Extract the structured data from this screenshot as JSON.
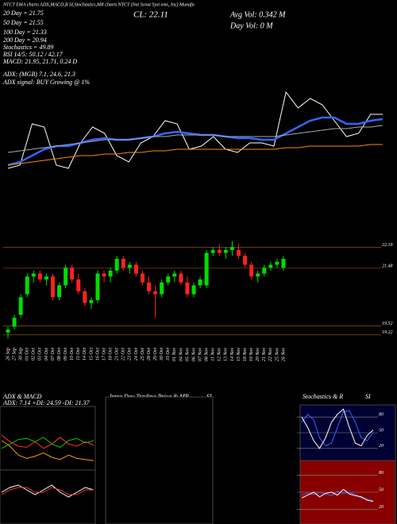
{
  "header": {
    "top_strip": "NTCT EMA charts ADX,MACD,B SI,Stochastics,MR charts NTCT (Net Scout Syst ems, Inc) Munafa",
    "ema20": "20 Day = 21.75",
    "ema50": "50 Day = 21.55",
    "ema100": "100 Day = 21.33",
    "ema200": "200 Day = 20.94",
    "stochastics": "Stochastics = 49.89",
    "rsi": "RSI 14/5: 50.12 / 42.17",
    "macd": "MACD: 21.95, 21.71, 0.24  D",
    "close": "CL: 22.11",
    "avg_vol": "Avg Vol: 0.342  M",
    "day_vol": "Day Vol: 0   M",
    "adx": "ADX:           (MGB) 7.1, 24.6, 21.3",
    "adx_signal": "ADX  signal:                     BUY Growing @ 1%"
  },
  "panels": {
    "adx_macd": "ADX  & MACD",
    "adx_values": "ADX: 7.14 +DI: 24.59 -DI: 21.37",
    "intraday": "Intra Day Trading Price  & MR",
    "intraday_si": "SI",
    "stoch": "Stochastics & R",
    "stoch_si": "SI"
  },
  "chart_data": [
    {
      "type": "line",
      "ylim": [
        19.5,
        23
      ],
      "series": [
        {
          "color": "#ffffff",
          "values": [
            20.2,
            20.3,
            21.6,
            21.5,
            20.3,
            20.2,
            21.0,
            21.5,
            21.3,
            20.6,
            20.4,
            21.0,
            21.2,
            21.7,
            21.6,
            20.8,
            20.9,
            21.2,
            20.8,
            20.7,
            21.0,
            21.0,
            20.9,
            22.6,
            22.1,
            22.4,
            22.2,
            21.7,
            21.2,
            21.3,
            21.9,
            21.9
          ]
        },
        {
          "color": "#3366ff",
          "values": [
            20.3,
            20.4,
            20.6,
            20.8,
            20.9,
            20.9,
            21.0,
            21.1,
            21.15,
            21.1,
            21.1,
            21.15,
            21.2,
            21.3,
            21.35,
            21.3,
            21.25,
            21.25,
            21.2,
            21.15,
            21.15,
            21.1,
            21.1,
            21.3,
            21.5,
            21.7,
            21.8,
            21.8,
            21.6,
            21.6,
            21.7,
            21.75
          ]
        },
        {
          "color": "#aaaaaa",
          "values": [
            20.7,
            20.75,
            20.8,
            20.85,
            20.9,
            20.95,
            21.0,
            21.05,
            21.1,
            21.1,
            21.1,
            21.15,
            21.2,
            21.2,
            21.25,
            21.25,
            21.25,
            21.25,
            21.2,
            21.2,
            21.2,
            21.2,
            21.2,
            21.25,
            21.3,
            21.35,
            21.4,
            21.45,
            21.45,
            21.5,
            21.5,
            21.55
          ]
        },
        {
          "color": "#ff8800",
          "values": [
            20.3,
            20.35,
            20.4,
            20.45,
            20.5,
            20.55,
            20.6,
            20.6,
            20.65,
            20.65,
            20.7,
            20.7,
            20.75,
            20.75,
            20.8,
            20.8,
            20.8,
            20.8,
            20.8,
            20.8,
            20.8,
            20.8,
            20.8,
            20.85,
            20.85,
            20.9,
            20.9,
            20.9,
            20.9,
            20.9,
            20.95,
            20.95
          ]
        }
      ]
    },
    {
      "type": "candlestick",
      "ylim": [
        19.0,
        22.5
      ],
      "yticks": [
        22.19,
        21.48,
        19.52,
        19.22
      ],
      "categories": [
        "26 Sep",
        "27 Sep",
        "30 Sep",
        "01 Oct",
        "02 Oct",
        "03 Oct",
        "04 Oct",
        "07 Oct",
        "08 Oct",
        "09 Oct",
        "10 Oct",
        "11 Oct",
        "14 Oct",
        "15 Oct",
        "16 Oct",
        "17 Oct",
        "18 Oct",
        "21 Oct",
        "22 Oct",
        "23 Oct",
        "24 Oct",
        "25 Oct",
        "28 Oct",
        "29 Oct",
        "30 Oct",
        "31 Oct",
        "01 Nov",
        "04 Nov",
        "05 Nov",
        "06 Nov",
        "07 Nov",
        "08 Nov",
        "11 Nov",
        "12 Nov",
        "13 Nov",
        "14 Nov",
        "15 Nov",
        "18 Nov",
        "19 Nov",
        "20 Nov",
        "21 Nov",
        "22 Nov",
        "25 Nov",
        "26 Nov"
      ],
      "open": [
        19.3,
        19.5,
        19.9,
        20.6,
        21.2,
        21.3,
        21.1,
        21.2,
        20.5,
        20.9,
        21.5,
        21.1,
        20.7,
        20.3,
        20.4,
        21.3,
        21.2,
        21.4,
        21.8,
        21.5,
        21.6,
        21.3,
        21.0,
        20.7,
        20.6,
        21.0,
        21.2,
        21.3,
        21.0,
        20.6,
        20.9,
        20.9,
        22.0,
        22.1,
        22.0,
        22.1,
        22.1,
        21.9,
        21.6,
        21.2,
        21.3,
        21.5,
        21.6,
        21.5
      ],
      "high": [
        19.5,
        19.9,
        20.6,
        21.3,
        21.4,
        21.4,
        21.3,
        21.3,
        21.0,
        21.6,
        21.6,
        21.3,
        20.8,
        20.5,
        21.4,
        21.4,
        21.5,
        21.9,
        21.9,
        21.7,
        21.7,
        21.4,
        21.2,
        20.9,
        21.1,
        21.3,
        21.4,
        21.4,
        21.2,
        21.0,
        21.2,
        22.1,
        22.2,
        22.3,
        22.2,
        22.4,
        22.3,
        22.0,
        21.7,
        21.4,
        21.6,
        21.7,
        21.8,
        21.9
      ],
      "low": [
        19.1,
        19.4,
        19.8,
        20.5,
        21.0,
        21.0,
        20.9,
        20.4,
        20.4,
        20.8,
        21.0,
        20.6,
        20.2,
        20.1,
        20.3,
        21.0,
        21.0,
        21.3,
        21.4,
        21.3,
        21.2,
        20.9,
        20.6,
        19.8,
        20.5,
        20.9,
        21.0,
        20.9,
        20.5,
        20.5,
        20.8,
        20.8,
        21.9,
        21.9,
        21.8,
        21.9,
        21.8,
        21.5,
        21.1,
        21.0,
        21.2,
        21.4,
        21.5,
        21.4
      ],
      "close": [
        19.4,
        19.8,
        20.5,
        21.2,
        21.3,
        21.1,
        21.2,
        20.5,
        20.9,
        21.5,
        21.1,
        20.7,
        20.3,
        20.4,
        21.3,
        21.2,
        21.4,
        21.8,
        21.5,
        21.6,
        21.3,
        21.0,
        20.7,
        20.6,
        21.0,
        21.2,
        21.3,
        21.0,
        20.6,
        20.9,
        21.1,
        22.0,
        22.1,
        22.0,
        22.1,
        22.2,
        21.9,
        21.6,
        21.2,
        21.3,
        21.5,
        21.6,
        21.7,
        21.8
      ]
    },
    {
      "type": "line",
      "ylim": [
        0,
        50
      ],
      "series": [
        {
          "color": "#00cc00",
          "values": [
            18,
            22,
            26,
            27,
            24,
            28,
            22,
            19,
            25,
            27,
            23,
            25
          ]
        },
        {
          "color": "#ff3333",
          "values": [
            30,
            24,
            20,
            19,
            24,
            18,
            22,
            28,
            22,
            20,
            24,
            21
          ]
        },
        {
          "color": "#ff9900",
          "values": [
            25,
            20,
            12,
            9,
            11,
            14,
            10,
            8,
            12,
            9,
            8,
            7
          ]
        }
      ]
    },
    {
      "type": "line",
      "ylim": [
        -1,
        1
      ],
      "series": [
        {
          "color": "#ffffff",
          "values": [
            0.2,
            0.4,
            0.5,
            0.3,
            0.1,
            0.3,
            0.5,
            0.2,
            0.0,
            0.2,
            0.4,
            0.3
          ]
        },
        {
          "color": "#ff3333",
          "values": [
            0.1,
            0.3,
            0.4,
            0.4,
            0.2,
            0.2,
            0.4,
            0.3,
            0.1,
            0.1,
            0.3,
            0.3
          ]
        }
      ]
    },
    {
      "type": "line",
      "ylim": [
        0,
        100
      ],
      "yticks": [
        80,
        50,
        20
      ],
      "series": [
        {
          "color": "#3366ff",
          "values": [
            70,
            85,
            75,
            40,
            25,
            30,
            60,
            90,
            92,
            70,
            40,
            35,
            50
          ]
        },
        {
          "color": "#ffffff",
          "values": [
            80,
            60,
            35,
            20,
            40,
            70,
            85,
            95,
            60,
            30,
            25,
            45,
            55
          ]
        }
      ]
    },
    {
      "type": "line",
      "ylim": [
        0,
        100
      ],
      "yticks": [
        80,
        50,
        20
      ],
      "series": [
        {
          "color": "#3366ff",
          "values": [
            45,
            48,
            46,
            50,
            47,
            44,
            52,
            48,
            50,
            46,
            40,
            38,
            35
          ]
        },
        {
          "color": "#ffffff",
          "values": [
            40,
            45,
            50,
            42,
            48,
            50,
            45,
            55,
            47,
            44,
            42,
            36,
            34
          ]
        }
      ]
    }
  ]
}
